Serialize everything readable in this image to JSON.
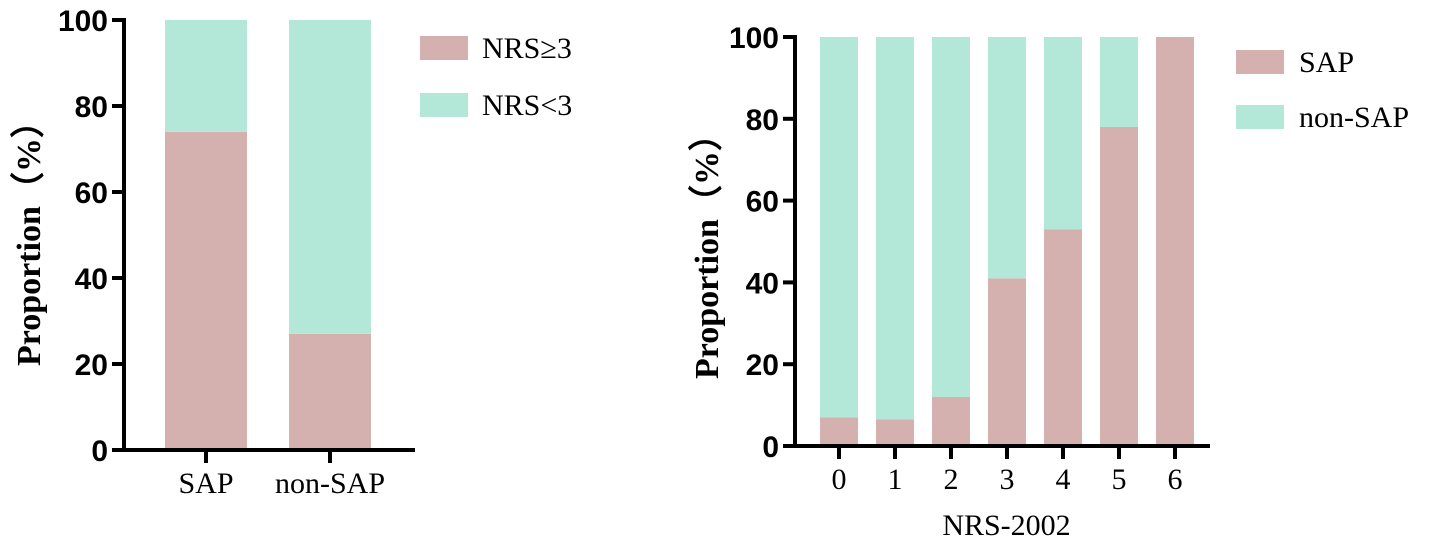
{
  "colors": {
    "pink": "#d4b0ae",
    "mint": "#b3e8d8"
  },
  "chart_data": [
    {
      "type": "bar",
      "stacked": true,
      "categories": [
        "SAP",
        "non-SAP"
      ],
      "series": [
        {
          "name": "NRS≥3",
          "values": [
            74,
            27
          ],
          "color": "#d4b0ae"
        },
        {
          "name": "NRS<3",
          "values": [
            26,
            73
          ],
          "color": "#b3e8d8"
        }
      ],
      "xlabel": "",
      "ylabel": "Proportion（%）",
      "ylim": [
        0,
        100
      ],
      "yticks": [
        0,
        20,
        40,
        60,
        80,
        100
      ],
      "legend": "right"
    },
    {
      "type": "bar",
      "stacked": true,
      "categories": [
        "0",
        "1",
        "2",
        "3",
        "4",
        "5",
        "6"
      ],
      "series": [
        {
          "name": "SAP",
          "values": [
            7,
            6.5,
            12,
            41,
            53,
            78,
            100
          ],
          "color": "#d4b0ae"
        },
        {
          "name": "non-SAP",
          "values": [
            93,
            93.5,
            88,
            59,
            47,
            22,
            0
          ],
          "color": "#b3e8d8"
        }
      ],
      "xlabel": "NRS-2002",
      "ylabel": "Proportion（%）",
      "ylim": [
        0,
        100
      ],
      "yticks": [
        0,
        20,
        40,
        60,
        80,
        100
      ],
      "legend": "right"
    }
  ]
}
